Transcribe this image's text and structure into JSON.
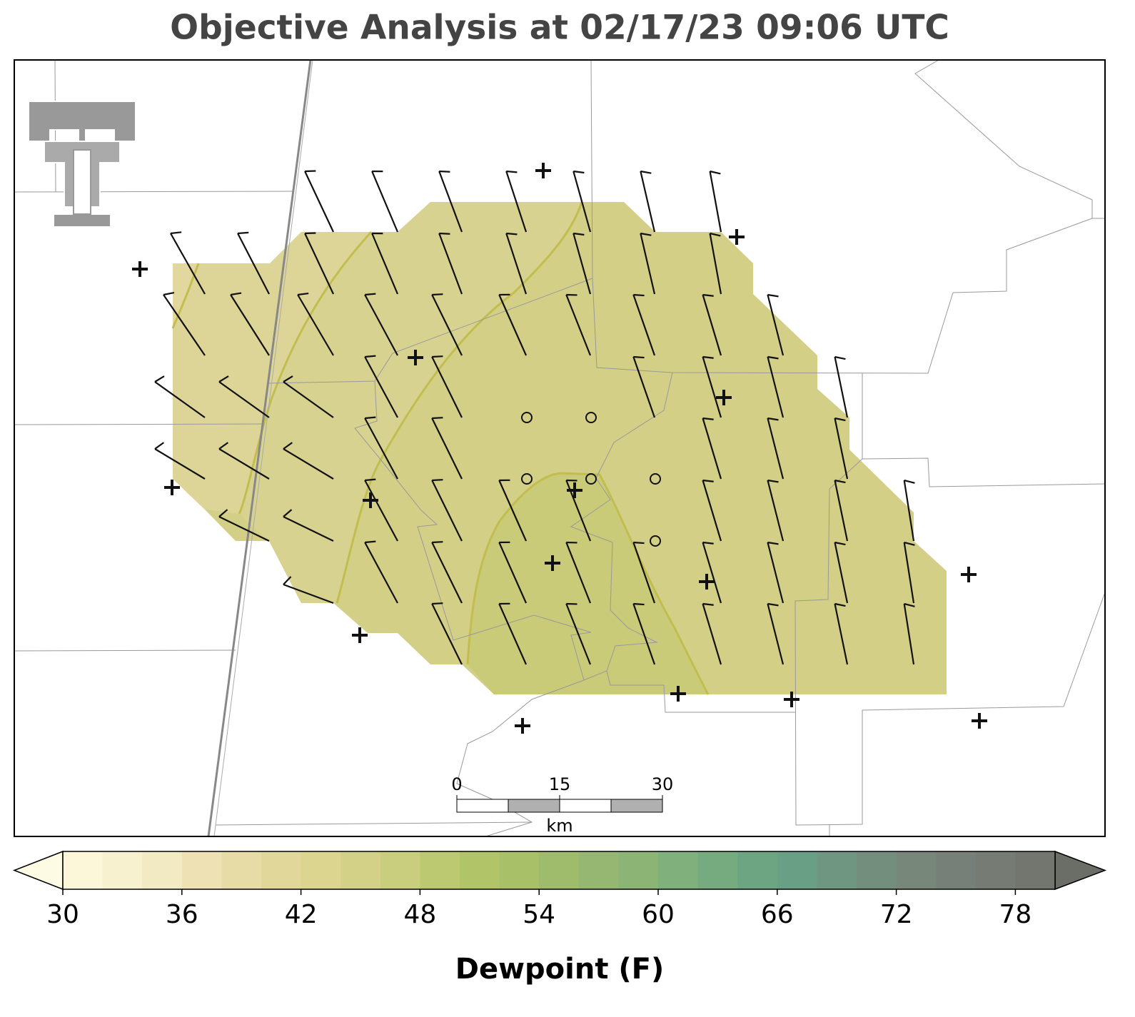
{
  "title": "Objective Analysis at 02/17/23 09:06 UTC",
  "scale_bar": {
    "ticks": [
      0,
      15,
      30
    ],
    "lim": [
      0,
      30
    ],
    "unit": "km"
  },
  "colorbar": {
    "label": "Dewpoint (F)",
    "lim": [
      30,
      80
    ],
    "ticks": [
      30,
      36,
      42,
      48,
      54,
      60,
      66,
      72,
      78
    ],
    "boundaries": [
      30,
      32,
      34,
      36,
      38,
      40,
      42,
      44,
      46,
      48,
      50,
      52,
      54,
      56,
      58,
      60,
      62,
      64,
      66,
      68,
      70,
      72,
      74,
      76,
      78,
      80
    ],
    "colors": [
      "#fbf7d8",
      "#f7f1cf",
      "#f2eac3",
      "#eee2b5",
      "#e8dca6",
      "#e2d79a",
      "#dcd590",
      "#d3d188",
      "#c9ce7e",
      "#bdc971",
      "#b2c468",
      "#a8c068",
      "#9fbb6c",
      "#95b771",
      "#8bb475",
      "#80b07b",
      "#76ab7f",
      "#6da582",
      "#699f84",
      "#6e9681",
      "#748e7e",
      "#77887b",
      "#778078",
      "#767b74",
      "#72766e"
    ],
    "under_color": "#fdfbe3",
    "over_color": "#6a6e66"
  }
}
